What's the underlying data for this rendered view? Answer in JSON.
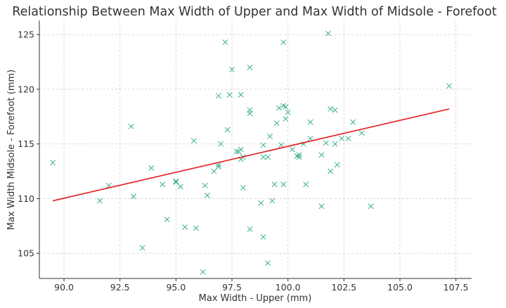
{
  "chart_data": {
    "type": "scatter",
    "title": "Relationship Between Max Width of Upper and Max Width of Midsole - Forefoot",
    "xlabel": "Max Width - Upper (mm)",
    "ylabel": "Max Width Midsole - Forefoot (mm)",
    "xlim": [
      88.9,
      108.2
    ],
    "ylim": [
      102.7,
      126.3
    ],
    "xticks": [
      90.0,
      92.5,
      95.0,
      97.5,
      100.0,
      102.5,
      105.0,
      107.5
    ],
    "yticks": [
      105,
      110,
      115,
      120,
      125
    ],
    "xtick_labels": [
      "90.0",
      "92.5",
      "95.0",
      "97.5",
      "100.0",
      "102.5",
      "105.0",
      "107.5"
    ],
    "ytick_labels": [
      "105",
      "110",
      "115",
      "120",
      "125"
    ],
    "grid": true,
    "series": [
      {
        "marker": "x",
        "color": "#3cb08a",
        "points": [
          [
            89.5,
            113.3
          ],
          [
            91.6,
            109.8
          ],
          [
            92.0,
            111.2
          ],
          [
            93.0,
            116.6
          ],
          [
            93.1,
            110.2
          ],
          [
            93.5,
            105.5
          ],
          [
            93.9,
            112.8
          ],
          [
            94.4,
            111.3
          ],
          [
            94.6,
            108.1
          ],
          [
            95.0,
            111.6
          ],
          [
            95.0,
            111.5
          ],
          [
            95.2,
            111.1
          ],
          [
            95.4,
            107.4
          ],
          [
            95.8,
            115.3
          ],
          [
            95.9,
            107.3
          ],
          [
            96.2,
            103.3
          ],
          [
            96.3,
            111.2
          ],
          [
            96.4,
            110.3
          ],
          [
            96.7,
            112.5
          ],
          [
            96.9,
            113.1
          ],
          [
            96.9,
            112.9
          ],
          [
            96.9,
            119.4
          ],
          [
            97.0,
            115.0
          ],
          [
            97.2,
            124.3
          ],
          [
            97.3,
            116.3
          ],
          [
            97.4,
            119.5
          ],
          [
            97.5,
            121.8
          ],
          [
            97.7,
            114.3
          ],
          [
            97.8,
            114.3
          ],
          [
            97.9,
            114.5
          ],
          [
            97.9,
            119.5
          ],
          [
            97.9,
            113.6
          ],
          [
            98.0,
            113.8
          ],
          [
            98.0,
            111.0
          ],
          [
            98.3,
            122.0
          ],
          [
            98.3,
            117.8
          ],
          [
            98.3,
            118.1
          ],
          [
            98.3,
            107.2
          ],
          [
            98.8,
            109.6
          ],
          [
            98.9,
            114.9
          ],
          [
            98.9,
            106.5
          ],
          [
            98.9,
            113.8
          ],
          [
            99.1,
            113.8
          ],
          [
            99.1,
            104.1
          ],
          [
            99.2,
            115.7
          ],
          [
            99.3,
            109.8
          ],
          [
            99.4,
            111.3
          ],
          [
            99.5,
            116.9
          ],
          [
            99.6,
            118.3
          ],
          [
            99.7,
            114.9
          ],
          [
            99.8,
            124.3
          ],
          [
            99.8,
            118.5
          ],
          [
            99.8,
            111.3
          ],
          [
            99.9,
            118.4
          ],
          [
            99.9,
            117.3
          ],
          [
            100.0,
            117.9
          ],
          [
            100.2,
            114.5
          ],
          [
            100.4,
            113.9
          ],
          [
            100.5,
            113.8
          ],
          [
            100.5,
            114.0
          ],
          [
            100.7,
            115.0
          ],
          [
            100.8,
            111.3
          ],
          [
            101.0,
            117.0
          ],
          [
            101.0,
            115.5
          ],
          [
            101.5,
            114.0
          ],
          [
            101.5,
            109.3
          ],
          [
            101.7,
            115.1
          ],
          [
            101.8,
            125.1
          ],
          [
            101.9,
            118.2
          ],
          [
            101.9,
            112.5
          ],
          [
            102.1,
            118.1
          ],
          [
            102.1,
            115.0
          ],
          [
            102.2,
            113.1
          ],
          [
            102.4,
            115.5
          ],
          [
            102.7,
            115.5
          ],
          [
            102.9,
            117.0
          ],
          [
            103.3,
            116.0
          ],
          [
            103.7,
            109.3
          ],
          [
            107.2,
            120.3
          ]
        ]
      }
    ],
    "trendline": {
      "color": "#e31a1c",
      "x": [
        89.5,
        107.2
      ],
      "y": [
        109.8,
        118.2
      ]
    }
  }
}
